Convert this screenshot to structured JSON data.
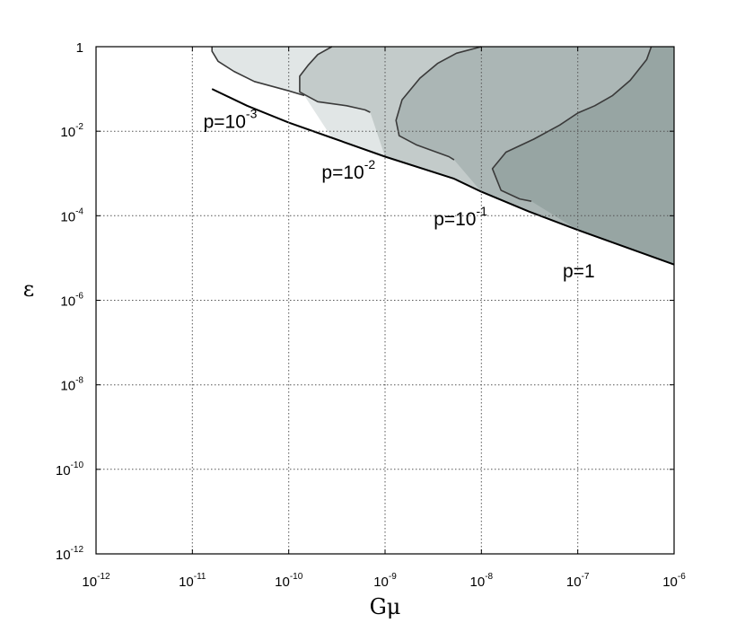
{
  "chart_data": {
    "type": "area",
    "title": "",
    "xlabel": "Gμ",
    "ylabel": "ε",
    "x_scale": "log",
    "y_scale": "log",
    "xlim": [
      1e-12,
      1e-06
    ],
    "ylim": [
      1e-12,
      1
    ],
    "grid": true,
    "x_ticks": [
      {
        "value": 1e-12,
        "base": "10",
        "exp": "-12"
      },
      {
        "value": 1e-11,
        "base": "10",
        "exp": "-11"
      },
      {
        "value": 1e-10,
        "base": "10",
        "exp": "-10"
      },
      {
        "value": 1e-09,
        "base": "10",
        "exp": "-9"
      },
      {
        "value": 1e-08,
        "base": "10",
        "exp": "-8"
      },
      {
        "value": 1e-07,
        "base": "10",
        "exp": "-7"
      },
      {
        "value": 1e-06,
        "base": "10",
        "exp": "-6"
      }
    ],
    "y_ticks": [
      {
        "value": 1,
        "base": "1",
        "exp": ""
      },
      {
        "value": 0.01,
        "base": "10",
        "exp": "-2"
      },
      {
        "value": 0.0001,
        "base": "10",
        "exp": "-4"
      },
      {
        "value": 1e-06,
        "base": "10",
        "exp": "-6"
      },
      {
        "value": 1e-08,
        "base": "10",
        "exp": "-8"
      },
      {
        "value": 1e-10,
        "base": "10",
        "exp": "-10"
      },
      {
        "value": 1e-12,
        "base": "10",
        "exp": "-12"
      }
    ],
    "lower_boundary": {
      "x": [
        1.6e-11,
        3.7e-11,
        1e-10,
        2.8e-10,
        1e-09,
        5.2e-09,
        1e-08,
        3.1e-08,
        1e-07,
        1e-06
      ],
      "y": [
        0.1,
        0.04,
        0.016,
        0.007,
        0.0025,
        0.00075,
        0.00037,
        0.000126,
        4.6e-05,
        7e-06
      ]
    },
    "series": [
      {
        "name": "p=10⁻³",
        "label_base": "p=10",
        "label_exp": "-3",
        "label_at": {
          "x": 1.3e-11,
          "y": 0.012
        },
        "fill": "#e1e6e6",
        "boundary": {
          "x": [
            1.6e-11,
            1.6e-11,
            1.85e-11,
            2.7e-11,
            4.4e-11,
            1e-10,
            1.45e-10
          ],
          "y": [
            1,
            0.78,
            0.45,
            0.26,
            0.15,
            0.09,
            0.07
          ]
        }
      },
      {
        "name": "p=10⁻²",
        "label_base": "p=10",
        "label_exp": "-2",
        "label_at": {
          "x": 2.2e-10,
          "y": 0.00075
        },
        "fill": "#c3cbca",
        "boundary": {
          "x": [
            2.8e-10,
            2e-10,
            1.6e-10,
            1.3e-10,
            1.3e-10,
            2e-10,
            4e-10,
            6.2e-10,
            7e-10
          ],
          "y": [
            1,
            0.65,
            0.37,
            0.2,
            0.085,
            0.05,
            0.04,
            0.032,
            0.028
          ]
        }
      },
      {
        "name": "p=10⁻¹",
        "label_base": "p=10",
        "label_exp": "-1",
        "label_at": {
          "x": 3.2e-09,
          "y": 6e-05
        },
        "fill": "#abb6b5",
        "boundary": {
          "x": [
            1e-08,
            5.5e-09,
            3.5e-09,
            2.3e-09,
            1.5e-09,
            1.3e-09,
            1.4e-09,
            2.1e-09,
            4.6e-09,
            5.2e-09
          ],
          "y": [
            1,
            0.7,
            0.4,
            0.18,
            0.055,
            0.018,
            0.0078,
            0.0048,
            0.0025,
            0.0021
          ]
        }
      },
      {
        "name": "p=1",
        "label_base": "p=1",
        "label_exp": "",
        "label_at": {
          "x": 7e-08,
          "y": 3.5e-06
        },
        "fill": "#97a5a3",
        "boundary": {
          "x": [
            5.8e-07,
            5.2e-07,
            3.5e-07,
            2.3e-07,
            1.5e-07,
            1e-07,
            6.5e-08,
            3.5e-08,
            1.8e-08,
            1.3e-08,
            1.6e-08,
            2.5e-08,
            3.3e-08
          ],
          "y": [
            1,
            0.5,
            0.16,
            0.07,
            0.04,
            0.027,
            0.014,
            0.0065,
            0.0032,
            0.0013,
            0.0004,
            0.00025,
            0.00022
          ]
        }
      }
    ]
  }
}
